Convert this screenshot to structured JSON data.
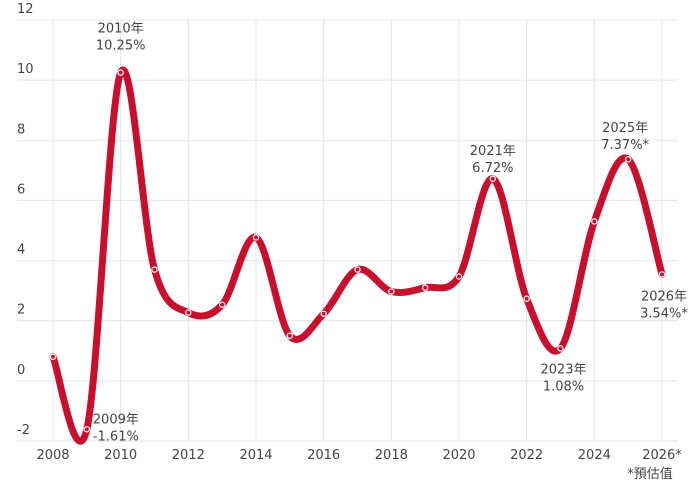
{
  "chart_data": {
    "type": "line",
    "title": "",
    "xlabel": "",
    "ylabel": "",
    "x": [
      2008,
      2009,
      2010,
      2011,
      2012,
      2013,
      2014,
      2015,
      2016,
      2017,
      2018,
      2019,
      2020,
      2021,
      2022,
      2023,
      2024,
      2025,
      2026
    ],
    "values": [
      0.8,
      -1.61,
      10.25,
      3.7,
      2.27,
      2.53,
      4.77,
      1.5,
      2.23,
      3.7,
      2.97,
      3.1,
      3.47,
      6.72,
      2.73,
      1.08,
      5.3,
      7.37,
      3.54
    ],
    "ylim": [
      -2,
      12
    ],
    "xlim": [
      2008,
      2026
    ],
    "y_ticks": [
      "-2",
      "0",
      "2",
      "4",
      "6",
      "8",
      "10",
      "12"
    ],
    "x_ticks": [
      "2008",
      "2010",
      "2012",
      "2014",
      "2016",
      "2018",
      "2020",
      "2022",
      "2024",
      "2026*"
    ],
    "grid": true,
    "line_color": "#c8102e",
    "annotations": [
      {
        "year": 2009,
        "line1": "2009年",
        "line2": "-1.61%"
      },
      {
        "year": 2010,
        "line1": "2010年",
        "line2": "10.25%"
      },
      {
        "year": 2021,
        "line1": "2021年",
        "line2": "6.72%"
      },
      {
        "year": 2023,
        "line1": "2023年",
        "line2": "1.08%"
      },
      {
        "year": 2025,
        "line1": "2025年",
        "line2": "7.37%*"
      },
      {
        "year": 2026,
        "line1": "2026年",
        "line2": "3.54%*"
      }
    ],
    "footnote": "*預估值"
  }
}
